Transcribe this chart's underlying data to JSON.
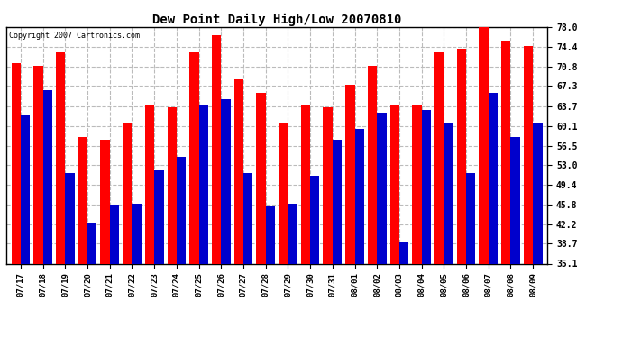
{
  "title": "Dew Point Daily High/Low 20070810",
  "copyright": "Copyright 2007 Cartronics.com",
  "dates": [
    "07/17",
    "07/18",
    "07/19",
    "07/20",
    "07/21",
    "07/22",
    "07/23",
    "07/24",
    "07/25",
    "07/26",
    "07/27",
    "07/28",
    "07/29",
    "07/30",
    "07/31",
    "08/01",
    "08/02",
    "08/03",
    "08/04",
    "08/05",
    "08/06",
    "08/07",
    "08/08",
    "08/09"
  ],
  "highs": [
    71.5,
    71.0,
    73.5,
    58.0,
    57.5,
    60.5,
    64.0,
    63.5,
    73.5,
    76.5,
    68.5,
    66.0,
    60.5,
    64.0,
    63.5,
    67.5,
    71.0,
    64.0,
    64.0,
    73.5,
    74.0,
    78.0,
    75.5,
    74.5
  ],
  "lows": [
    62.0,
    66.5,
    51.5,
    42.5,
    45.8,
    46.0,
    52.0,
    54.5,
    64.0,
    65.0,
    51.5,
    45.5,
    46.0,
    51.0,
    57.5,
    59.5,
    62.5,
    39.0,
    63.0,
    60.5,
    51.5,
    66.0,
    58.0,
    60.5
  ],
  "high_color": "#ff0000",
  "low_color": "#0000cc",
  "background_color": "#ffffff",
  "plot_bg_color": "#ffffff",
  "grid_color": "#bbbbbb",
  "yticks": [
    35.1,
    38.7,
    42.2,
    45.8,
    49.4,
    53.0,
    56.5,
    60.1,
    63.7,
    67.3,
    70.8,
    74.4,
    78.0
  ],
  "ymin": 35.1,
  "ymax": 78.0,
  "bar_width": 0.42
}
